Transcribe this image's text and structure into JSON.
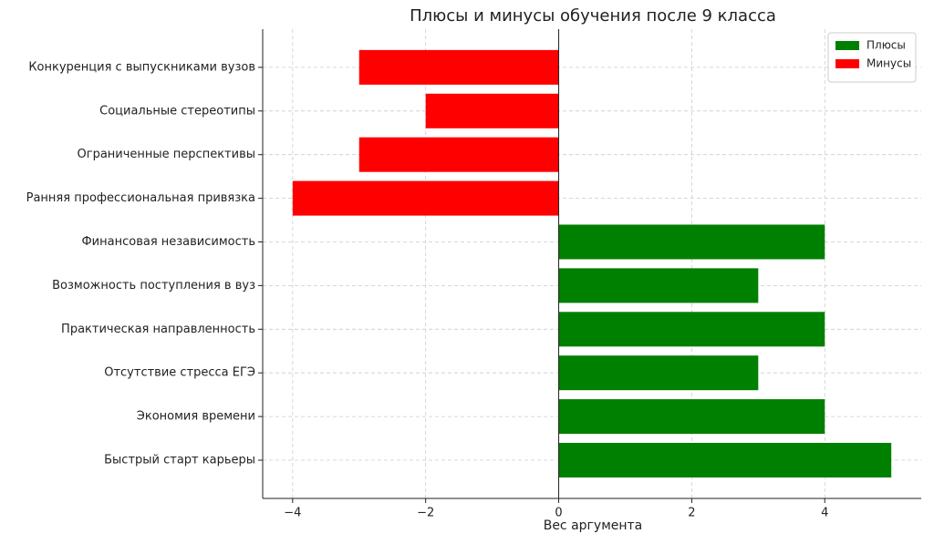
{
  "chart_data": {
    "type": "barh",
    "title": "Плюсы и минусы обучения после 9 класса",
    "x_label": "Вес аргумента",
    "categories": [
      "Быстрый старт карьеры",
      "Экономия времени",
      "Отсутствие стресса ЕГЭ",
      "Практическая направленность",
      "Возможность поступления в вуз",
      "Финансовая независимость",
      "Ранняя профессиональная привязка",
      "Ограниченные перспективы",
      "Социальные стереотипы",
      "Конкуренция с выпускниками вузов"
    ],
    "series": [
      {
        "name": "Плюсы",
        "color": "#008000",
        "values": [
          5,
          4,
          3,
          4,
          3,
          4,
          null,
          null,
          null,
          null
        ]
      },
      {
        "name": "Минусы",
        "color": "#ff0000",
        "values": [
          null,
          null,
          null,
          null,
          null,
          null,
          -4,
          -3,
          -2,
          -3
        ]
      }
    ],
    "xlim": [
      -4.45,
      5.45
    ],
    "xticks": [
      {
        "value": -4,
        "label": "−4"
      },
      {
        "value": -2,
        "label": "−2"
      },
      0,
      2,
      4
    ],
    "grid": true,
    "legend": "upper right"
  }
}
